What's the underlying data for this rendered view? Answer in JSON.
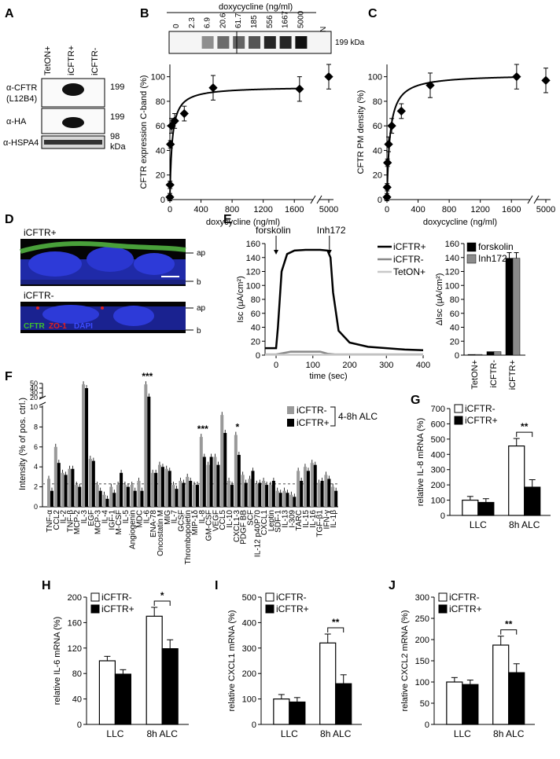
{
  "panels": [
    "A",
    "B",
    "C",
    "D",
    "E",
    "F",
    "G",
    "H",
    "I",
    "J"
  ],
  "A": {
    "lanes": [
      "TetON+",
      "iCFTR+",
      "iCFTR-"
    ],
    "rows": [
      "α-CFTR",
      "(L12B4)",
      "α-HA",
      "α-HSPA4"
    ],
    "mw": [
      "199",
      "199",
      "98",
      "kDa"
    ]
  },
  "B": {
    "header": "doxycycline (ng/ml)",
    "doses": [
      "0",
      "2.3",
      "6.9",
      "20.6",
      "61.7",
      "185",
      "556",
      "1667",
      "5000"
    ],
    "teton": "TetON",
    "kda": "199 kDa",
    "ylabel": "CFTR expression C-band (%)",
    "xlabel": "doxycycline (ng/ml)",
    "yticks": [
      "0",
      "20",
      "40",
      "60",
      "80",
      "100"
    ],
    "xticks": [
      "0",
      "400",
      "800",
      "1200",
      "1600",
      "5000"
    ]
  },
  "C": {
    "ylabel": "CFTR PM density (%)",
    "xlabel": "doxycycline (ng/ml)",
    "yticks": [
      "0",
      "20",
      "40",
      "60",
      "80",
      "100"
    ],
    "xticks": [
      "0",
      "400",
      "800",
      "1200",
      "1600",
      "5000"
    ]
  },
  "D": {
    "top": "iCFTR+",
    "bottom": "iCFTR-",
    "ap": "ap",
    "b": "b",
    "stain_cftr": "CFTR",
    "stain_zo1": "ZO-1",
    "stain_dapi": "DAPI"
  },
  "E": {
    "arrow1": "forskolin",
    "arrow2": "Inh172",
    "ylabel": "Isc (µA/cm²)",
    "xlabel": "time (sec)",
    "yticks": [
      "0",
      "20",
      "40",
      "60",
      "80",
      "100",
      "120",
      "140",
      "160"
    ],
    "xticks": [
      "0",
      "100",
      "200",
      "300",
      "400"
    ],
    "legend": [
      "iCFTR+",
      "iCFTR-",
      "TetON+"
    ],
    "bar_ylabel": "ΔIsc (µA/cm²)",
    "bar_yticks": [
      "0",
      "20",
      "40",
      "60",
      "80",
      "100",
      "120",
      "140",
      "160"
    ],
    "bar_legend": [
      "forskolin",
      "Inh172"
    ],
    "bar_cats": [
      "TetON+",
      "iCFTR-",
      "iCFTR+"
    ]
  },
  "F": {
    "ylabel": "Intensity (% of pos. ctrl.)",
    "yticks": [
      "0",
      "2",
      "4",
      "6",
      "8",
      "10",
      "20",
      "30",
      "40",
      "50"
    ],
    "legend": [
      "iCFTR-",
      "iCFTR+"
    ],
    "legend_note": "4-8h ALC",
    "stars": [
      "***",
      "***",
      "*"
    ],
    "categories": [
      "TNF-α",
      "CCL2",
      "IL-2",
      "TNF-β",
      "MCP-2",
      "IL-3",
      "EGF",
      "MCP-3",
      "IL-4",
      "IGF-1",
      "M-CSF",
      "IL-5",
      "Angiogenin",
      "MDC",
      "IL-6",
      "ENA-78",
      "Oncostatin M",
      "MIG",
      "IL-7",
      "GCSF",
      "Thrombopoietin",
      "MIP-1δ",
      "IL-8",
      "GM-CSF",
      "VEGF",
      "CCL5",
      "IL-10",
      "CXCL1-3",
      "PDGF BB",
      "SCF",
      "IL-12 p40P70",
      "CXCL1",
      "Leptin",
      "SDF-1",
      "IL-13",
      "I-309",
      "TARC",
      "IL-15",
      "IL-16",
      "TGF-β1",
      "IFN-γ",
      "IL-1β"
    ]
  },
  "G": {
    "ylabel": "relative IL-8 mRNA (%)",
    "yticks": [
      "0",
      "100",
      "200",
      "300",
      "400",
      "500",
      "600",
      "700"
    ],
    "legend": [
      "iCFTR-",
      "iCFTR+"
    ],
    "sig": "**",
    "cats": [
      "LLC",
      "8h ALC"
    ]
  },
  "H": {
    "ylabel": "relative IL-6 mRNA (%)",
    "yticks": [
      "0",
      "40",
      "80",
      "120",
      "160",
      "200"
    ],
    "legend": [
      "iCFTR-",
      "iCFTR+"
    ],
    "sig": "*",
    "cats": [
      "LLC",
      "8h ALC"
    ]
  },
  "I": {
    "ylabel": "relative CXCL1 mRNA (%)",
    "yticks": [
      "0",
      "100",
      "200",
      "300",
      "400",
      "500"
    ],
    "legend": [
      "iCFTR-",
      "iCFTR+"
    ],
    "sig": "**",
    "cats": [
      "LLC",
      "8h ALC"
    ]
  },
  "J": {
    "ylabel": "relative CXCL2 mRNA (%)",
    "yticks": [
      "0",
      "50",
      "100",
      "150",
      "200",
      "250",
      "300"
    ],
    "legend": [
      "iCFTR-",
      "iCFTR+"
    ],
    "sig": "**",
    "cats": [
      "LLC",
      "8h ALC"
    ]
  },
  "chart_data": [
    {
      "panel": "B",
      "type": "scatter",
      "xlabel": "doxycycline (ng/ml)",
      "ylabel": "CFTR expression C-band (%)",
      "ylim": [
        0,
        110
      ],
      "x": [
        0,
        2.3,
        6.9,
        20.6,
        61.7,
        185,
        556,
        1667,
        5000
      ],
      "y": [
        2,
        12,
        45,
        60,
        64,
        70,
        91,
        90,
        100
      ]
    },
    {
      "panel": "C",
      "type": "scatter",
      "xlabel": "doxycycline (ng/ml)",
      "ylabel": "CFTR PM density (%)",
      "ylim": [
        0,
        110
      ],
      "x": [
        0,
        2.3,
        6.9,
        20.6,
        61.7,
        185,
        556,
        1667,
        5000
      ],
      "y": [
        2,
        10,
        30,
        45,
        60,
        72,
        93,
        100,
        97
      ]
    },
    {
      "panel": "E",
      "type": "line",
      "xlabel": "time (sec)",
      "ylabel": "Isc (µA/cm²)",
      "ylim": [
        0,
        160
      ],
      "xlim": [
        -30,
        400
      ],
      "series": [
        {
          "name": "iCFTR+",
          "x": [
            -30,
            0,
            5,
            15,
            30,
            50,
            80,
            120,
            140,
            148,
            155,
            170,
            200,
            250,
            300,
            350,
            400
          ],
          "y": [
            10,
            10,
            40,
            120,
            145,
            150,
            151,
            151,
            150,
            140,
            90,
            35,
            18,
            12,
            10,
            8,
            7
          ]
        },
        {
          "name": "iCFTR-",
          "x": [
            -30,
            0,
            40,
            120,
            140,
            160,
            400
          ],
          "y": [
            1,
            1,
            5,
            5,
            2,
            1,
            1
          ]
        },
        {
          "name": "TetON+",
          "x": [
            -30,
            400
          ],
          "y": [
            0.5,
            0.5
          ]
        }
      ]
    },
    {
      "panel": "E",
      "type": "bar",
      "ylabel": "ΔIsc (µA/cm²)",
      "ylim": [
        0,
        160
      ],
      "categories": [
        "TetON+",
        "iCFTR-",
        "iCFTR+"
      ],
      "series": [
        {
          "name": "forskolin",
          "values": [
            1,
            5,
            139
          ]
        },
        {
          "name": "Inh172",
          "values": [
            1,
            5,
            139
          ]
        }
      ]
    },
    {
      "panel": "F",
      "type": "bar",
      "ylabel": "Intensity (% of pos. ctrl.)",
      "series": [
        {
          "name": "iCFTR-",
          "values": [
            2.8,
            6,
            3.4,
            3.8,
            2.2,
            48,
            4.8,
            2.2,
            1.2,
            2,
            2.2,
            2.2,
            2.2,
            2.6,
            48,
            3.4,
            4.2,
            3.8,
            2.2,
            2.6,
            3,
            2.2,
            7,
            4.2,
            5,
            9.2,
            2.6,
            7.2,
            3.2,
            2.8,
            2.3,
            2.6,
            2.2,
            1.6,
            1.6,
            1.2,
            3.6,
            4,
            4.4,
            2.4,
            3.2,
            2
          ]
        },
        {
          "name": "iCFTR+",
          "values": [
            1.6,
            4.4,
            3.2,
            3.8,
            2,
            40,
            4.6,
            1.6,
            0.8,
            1.4,
            3.4,
            2,
            1.6,
            1.6,
            22,
            3.4,
            4,
            3.6,
            1.8,
            2.4,
            2.6,
            2.2,
            5,
            5,
            4.2,
            7.4,
            2.2,
            5.2,
            2.4,
            3.6,
            2.4,
            2.2,
            2.6,
            1.4,
            1.4,
            1,
            2.6,
            3.6,
            4.2,
            2.6,
            2.8,
            1.6
          ]
        }
      ]
    },
    {
      "panel": "G",
      "type": "bar",
      "categories": [
        "LLC",
        "8h ALC"
      ],
      "ylabel": "relative IL-8 mRNA (%)",
      "ylim": [
        0,
        700
      ],
      "series": [
        {
          "name": "iCFTR-",
          "values": [
            100,
            455
          ]
        },
        {
          "name": "iCFTR+",
          "values": [
            85,
            185
          ]
        }
      ]
    },
    {
      "panel": "H",
      "type": "bar",
      "categories": [
        "LLC",
        "8h ALC"
      ],
      "ylabel": "relative IL-6 mRNA (%)",
      "ylim": [
        0,
        200
      ],
      "series": [
        {
          "name": "iCFTR-",
          "values": [
            100,
            170
          ]
        },
        {
          "name": "iCFTR+",
          "values": [
            79,
            119
          ]
        }
      ]
    },
    {
      "panel": "I",
      "type": "bar",
      "categories": [
        "LLC",
        "8h ALC"
      ],
      "ylabel": "relative CXCL1 mRNA (%)",
      "ylim": [
        0,
        500
      ],
      "series": [
        {
          "name": "iCFTR-",
          "values": [
            100,
            320
          ]
        },
        {
          "name": "iCFTR+",
          "values": [
            88,
            160
          ]
        }
      ]
    },
    {
      "panel": "J",
      "type": "bar",
      "categories": [
        "LLC",
        "8h ALC"
      ],
      "ylabel": "relative CXCL2 mRNA (%)",
      "ylim": [
        0,
        300
      ],
      "series": [
        {
          "name": "iCFTR-",
          "values": [
            100,
            187
          ]
        },
        {
          "name": "iCFTR+",
          "values": [
            94,
            122
          ]
        }
      ]
    }
  ]
}
